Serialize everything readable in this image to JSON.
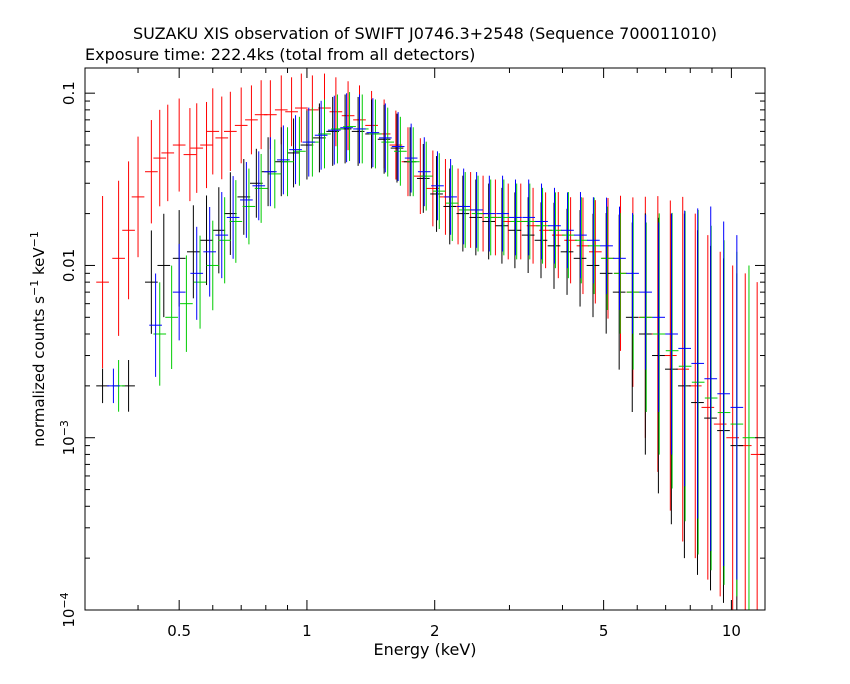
{
  "chart_data": {
    "type": "scatter",
    "title": "SUZAKU XIS observation of SWIFT J0746.3+2548 (Sequence 700011010)",
    "subtitle": "Exposure time: 222.4ks (total from all detectors)",
    "xlabel": "Energy (keV)",
    "ylabel_main": "normalized counts s",
    "ylabel_sup1": "−1",
    "ylabel_mid": " keV",
    "ylabel_sup2": "−1",
    "xscale": "log",
    "yscale": "log",
    "xlim": [
      0.3,
      12
    ],
    "ylim": [
      0.0001,
      0.14
    ],
    "x_ticks": [
      {
        "value": 0.5,
        "label": "0.5"
      },
      {
        "value": 1,
        "label": "1"
      },
      {
        "value": 2,
        "label": "2"
      },
      {
        "value": 5,
        "label": "5"
      },
      {
        "value": 10,
        "label": "10"
      }
    ],
    "y_ticks": [
      {
        "value": 0.1,
        "label": "0.1"
      },
      {
        "value": 0.01,
        "label": "0.01"
      },
      {
        "value": 0.001,
        "label": "10",
        "sup": "−3"
      },
      {
        "value": 0.0001,
        "label": "10",
        "sup": "−4"
      }
    ],
    "series": [
      {
        "color": "#ff0000",
        "x": [
          0.33,
          0.36,
          0.38,
          0.4,
          0.43,
          0.45,
          0.47,
          0.5,
          0.53,
          0.55,
          0.58,
          0.6,
          0.63,
          0.66,
          0.7,
          0.74,
          0.78,
          0.82,
          0.87,
          0.92,
          0.97,
          1.03,
          1.1,
          1.17,
          1.25,
          1.33,
          1.42,
          1.52,
          1.62,
          1.73,
          1.85,
          1.98,
          2.12,
          2.27,
          2.43,
          2.6,
          2.78,
          2.98,
          3.19,
          3.41,
          3.65,
          3.91,
          4.18,
          4.47,
          4.78,
          5.12,
          5.48,
          5.86,
          6.27,
          6.71,
          7.18,
          7.68,
          8.22,
          8.8,
          9.41,
          10.07,
          10.78,
          11.5
        ],
        "y": [
          0.008,
          0.011,
          0.016,
          0.025,
          0.035,
          0.042,
          0.045,
          0.05,
          0.044,
          0.048,
          0.05,
          0.06,
          0.055,
          0.06,
          0.065,
          0.07,
          0.075,
          0.075,
          0.08,
          0.078,
          0.082,
          0.08,
          0.082,
          0.078,
          0.074,
          0.07,
          0.065,
          0.058,
          0.05,
          0.04,
          0.033,
          0.028,
          0.025,
          0.022,
          0.021,
          0.02,
          0.019,
          0.018,
          0.018,
          0.017,
          0.016,
          0.015,
          0.014,
          0.013,
          0.012,
          0.011,
          0.009,
          0.007,
          0.005,
          0.004,
          0.003,
          0.0025,
          0.002,
          0.0015,
          0.0012,
          0.001,
          0.0009,
          0.0008
        ],
        "err": [
          0.5,
          0.45,
          0.4,
          0.35,
          0.3,
          0.28,
          0.28,
          0.27,
          0.27,
          0.26,
          0.25,
          0.25,
          0.24,
          0.23,
          0.22,
          0.2,
          0.2,
          0.2,
          0.2,
          0.2,
          0.2,
          0.2,
          0.2,
          0.2,
          0.2,
          0.2,
          0.2,
          0.2,
          0.2,
          0.2,
          0.22,
          0.22,
          0.22,
          0.22,
          0.22,
          0.22,
          0.22,
          0.22,
          0.22,
          0.22,
          0.22,
          0.25,
          0.25,
          0.28,
          0.3,
          0.35,
          0.45,
          0.55,
          0.7,
          0.8,
          0.9,
          1.0,
          1.0,
          1.0,
          1.0,
          1.0,
          1.0,
          1.0
        ]
      },
      {
        "color": "#000000",
        "x": [
          0.33,
          0.38,
          0.43,
          0.46,
          0.5,
          0.54,
          0.58,
          0.62,
          0.66,
          0.71,
          0.76,
          0.81,
          0.87,
          0.93,
          1.0,
          1.07,
          1.15,
          1.23,
          1.32,
          1.42,
          1.52,
          1.63,
          1.75,
          1.88,
          2.02,
          2.17,
          2.33,
          2.5,
          2.68,
          2.88,
          3.09,
          3.32,
          3.56,
          3.82,
          4.1,
          4.4,
          4.72,
          5.07,
          5.44,
          5.84,
          6.27,
          6.73,
          7.22,
          7.75,
          8.32,
          8.93,
          9.58,
          10.3
        ],
        "y": [
          0.002,
          0.002,
          0.008,
          0.01,
          0.011,
          0.012,
          0.014,
          0.016,
          0.02,
          0.025,
          0.03,
          0.035,
          0.04,
          0.045,
          0.05,
          0.055,
          0.06,
          0.062,
          0.06,
          0.058,
          0.054,
          0.048,
          0.04,
          0.032,
          0.026,
          0.022,
          0.02,
          0.019,
          0.018,
          0.017,
          0.016,
          0.015,
          0.014,
          0.013,
          0.012,
          0.011,
          0.01,
          0.009,
          0.007,
          0.005,
          0.004,
          0.003,
          0.0025,
          0.002,
          0.0016,
          0.0013,
          0.0011,
          0.0009
        ],
        "err": [
          0.1,
          0.15,
          0.3,
          0.3,
          0.28,
          0.27,
          0.26,
          0.25,
          0.24,
          0.22,
          0.2,
          0.2,
          0.2,
          0.2,
          0.2,
          0.2,
          0.2,
          0.2,
          0.2,
          0.2,
          0.2,
          0.2,
          0.2,
          0.2,
          0.22,
          0.22,
          0.22,
          0.22,
          0.22,
          0.22,
          0.22,
          0.22,
          0.22,
          0.25,
          0.25,
          0.28,
          0.3,
          0.35,
          0.45,
          0.55,
          0.7,
          0.8,
          0.9,
          1.0,
          1.0,
          1.0,
          1.0,
          1.0
        ]
      },
      {
        "color": "#00cc00",
        "x": [
          0.36,
          0.45,
          0.48,
          0.52,
          0.56,
          0.6,
          0.64,
          0.68,
          0.73,
          0.78,
          0.84,
          0.9,
          0.96,
          1.03,
          1.1,
          1.18,
          1.26,
          1.35,
          1.45,
          1.55,
          1.66,
          1.78,
          1.91,
          2.05,
          2.2,
          2.36,
          2.53,
          2.71,
          2.91,
          3.12,
          3.35,
          3.59,
          3.85,
          4.13,
          4.43,
          4.75,
          5.1,
          5.47,
          5.87,
          6.3,
          6.76,
          7.25,
          7.78,
          8.35,
          8.96,
          9.61,
          10.3,
          11.0
        ],
        "y": [
          0.002,
          0.004,
          0.005,
          0.006,
          0.008,
          0.01,
          0.014,
          0.018,
          0.022,
          0.028,
          0.034,
          0.04,
          0.046,
          0.052,
          0.058,
          0.062,
          0.064,
          0.062,
          0.058,
          0.052,
          0.046,
          0.04,
          0.033,
          0.027,
          0.023,
          0.021,
          0.02,
          0.019,
          0.019,
          0.018,
          0.018,
          0.017,
          0.016,
          0.015,
          0.014,
          0.013,
          0.011,
          0.009,
          0.007,
          0.005,
          0.004,
          0.0032,
          0.0026,
          0.0021,
          0.0017,
          0.0014,
          0.0012,
          0.001
        ],
        "err": [
          0.15,
          0.3,
          0.3,
          0.28,
          0.27,
          0.26,
          0.25,
          0.24,
          0.22,
          0.2,
          0.2,
          0.2,
          0.2,
          0.2,
          0.2,
          0.2,
          0.2,
          0.2,
          0.2,
          0.2,
          0.2,
          0.2,
          0.2,
          0.22,
          0.22,
          0.22,
          0.22,
          0.22,
          0.22,
          0.22,
          0.22,
          0.22,
          0.22,
          0.25,
          0.25,
          0.28,
          0.3,
          0.35,
          0.45,
          0.55,
          0.7,
          0.8,
          0.9,
          1.0,
          1.0,
          1.0,
          1.0,
          1.0
        ]
      },
      {
        "color": "#0000ff",
        "x": [
          0.35,
          0.44,
          0.5,
          0.55,
          0.59,
          0.63,
          0.67,
          0.72,
          0.77,
          0.82,
          0.88,
          0.94,
          1.01,
          1.08,
          1.16,
          1.24,
          1.33,
          1.43,
          1.53,
          1.64,
          1.76,
          1.89,
          2.03,
          2.18,
          2.34,
          2.51,
          2.69,
          2.89,
          3.1,
          3.33,
          3.57,
          3.83,
          4.11,
          4.41,
          4.73,
          5.08,
          5.45,
          5.85,
          6.28,
          6.74,
          7.23,
          7.76,
          8.33,
          8.94,
          9.59,
          10.3
        ],
        "y": [
          0.002,
          0.0045,
          0.007,
          0.009,
          0.012,
          0.015,
          0.019,
          0.024,
          0.029,
          0.035,
          0.041,
          0.047,
          0.052,
          0.057,
          0.061,
          0.063,
          0.062,
          0.059,
          0.055,
          0.049,
          0.042,
          0.035,
          0.029,
          0.025,
          0.022,
          0.021,
          0.02,
          0.02,
          0.019,
          0.019,
          0.018,
          0.017,
          0.016,
          0.015,
          0.014,
          0.013,
          0.011,
          0.009,
          0.007,
          0.005,
          0.004,
          0.0033,
          0.0027,
          0.0022,
          0.0018,
          0.0015
        ],
        "err": [
          0.1,
          0.3,
          0.28,
          0.27,
          0.26,
          0.25,
          0.24,
          0.22,
          0.2,
          0.2,
          0.2,
          0.2,
          0.2,
          0.2,
          0.2,
          0.2,
          0.2,
          0.2,
          0.2,
          0.2,
          0.2,
          0.2,
          0.2,
          0.22,
          0.22,
          0.22,
          0.22,
          0.22,
          0.22,
          0.22,
          0.22,
          0.22,
          0.22,
          0.25,
          0.25,
          0.28,
          0.3,
          0.35,
          0.45,
          0.55,
          0.7,
          0.8,
          0.9,
          1.0,
          1.0,
          1.0
        ]
      }
    ]
  }
}
